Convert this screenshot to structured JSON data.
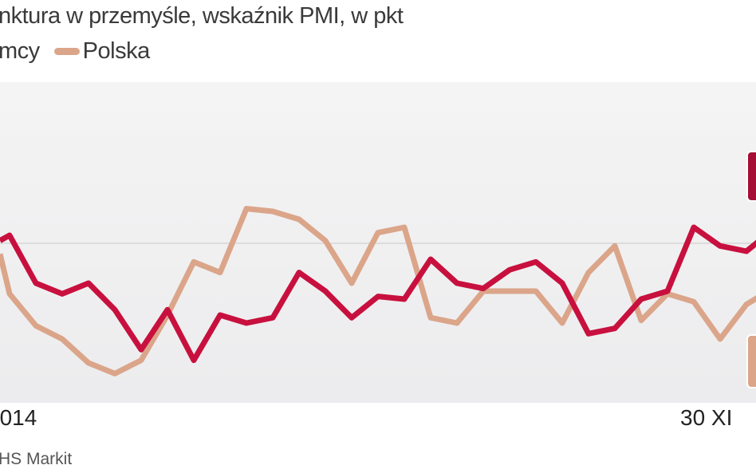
{
  "chart_data": {
    "type": "line",
    "title": "nktura w przemyśle, wskaźnik PMI, w pkt",
    "x_tick_labels": [
      "2014",
      "30 XI"
    ],
    "ylim": [
      44,
      56
    ],
    "reference_line": 50,
    "grid": false,
    "legend_placement": "top-left",
    "series": [
      {
        "name": "mcy",
        "color": "#c8103e",
        "values": [
          50.3,
          48.5,
          48.1,
          48.5,
          47.5,
          46.0,
          47.5,
          45.6,
          47.3,
          47.0,
          47.2,
          48.9,
          48.2,
          47.2,
          48.0,
          47.9,
          49.4,
          48.5,
          48.3,
          49.0,
          49.3,
          48.5,
          46.6,
          46.8,
          47.9,
          48.2,
          50.6,
          49.9,
          49.7,
          50.5
        ]
      },
      {
        "name": "Polska",
        "color": "#dba58a",
        "values": [
          48.1,
          46.9,
          46.4,
          45.5,
          45.1,
          45.6,
          47.3,
          49.3,
          48.9,
          51.3,
          51.2,
          50.9,
          50.1,
          48.5,
          50.4,
          50.6,
          47.2,
          47.0,
          48.2,
          48.2,
          48.2,
          47.0,
          48.9,
          49.9,
          47.1,
          48.1,
          47.8,
          46.4,
          47.7,
          48.3
        ]
      }
    ],
    "source": "HS Markit"
  }
}
